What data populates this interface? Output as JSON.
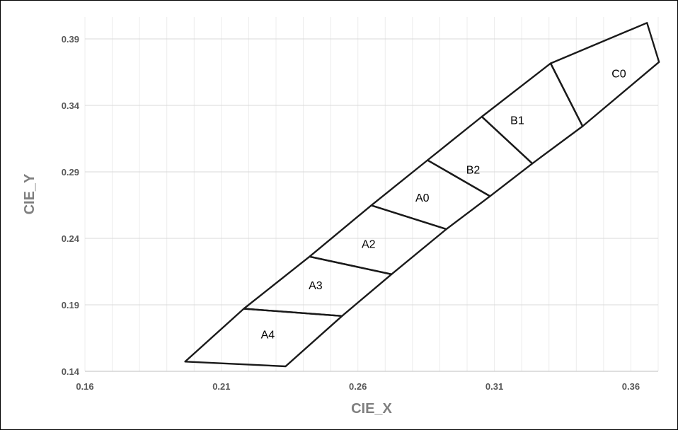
{
  "chart_data": {
    "type": "scatter",
    "xlabel": "CIE_X",
    "ylabel": "CIE_Y",
    "xlim": [
      0.16,
      0.37
    ],
    "ylim": [
      0.14,
      0.4
    ],
    "x_ticks": [
      0.16,
      0.21,
      0.26,
      0.31,
      0.36
    ],
    "y_ticks": [
      0.14,
      0.19,
      0.24,
      0.29,
      0.34,
      0.39
    ],
    "x_tick_labels": [
      "0.16",
      "0.21",
      "0.26",
      "0.31",
      "0.36"
    ],
    "y_tick_labels": [
      "0.14",
      "0.19",
      "0.24",
      "0.29",
      "0.34",
      "0.39"
    ],
    "minor_x_step": 0.01,
    "major_y_step": 0.05,
    "grid": true,
    "legend": "none",
    "line_color": "#1a1a1a",
    "regions": [
      {
        "name": "A4",
        "label_at": [
          0.227,
          0.168
        ],
        "vertices": [
          [
            0.1967,
            0.1473
          ],
          [
            0.2182,
            0.1871
          ],
          [
            0.2542,
            0.1816
          ],
          [
            0.2335,
            0.1437
          ]
        ]
      },
      {
        "name": "A3",
        "label_at": [
          0.2445,
          0.205
        ],
        "vertices": [
          [
            0.2182,
            0.1871
          ],
          [
            0.2423,
            0.2263
          ],
          [
            0.2723,
            0.213
          ],
          [
            0.2542,
            0.1816
          ]
        ]
      },
      {
        "name": "A2",
        "label_at": [
          0.2639,
          0.2359
        ],
        "vertices": [
          [
            0.2423,
            0.2263
          ],
          [
            0.2649,
            0.2648
          ],
          [
            0.2924,
            0.2469
          ],
          [
            0.2723,
            0.213
          ]
        ]
      },
      {
        "name": "A0",
        "label_at": [
          0.2836,
          0.2708
        ],
        "vertices": [
          [
            0.2649,
            0.2648
          ],
          [
            0.2855,
            0.2988
          ],
          [
            0.3084,
            0.2717
          ],
          [
            0.2924,
            0.2469
          ]
        ]
      },
      {
        "name": "B2",
        "label_at": [
          0.3022,
          0.2918
        ],
        "vertices": [
          [
            0.2855,
            0.2988
          ],
          [
            0.3054,
            0.3315
          ],
          [
            0.3239,
            0.2963
          ],
          [
            0.3084,
            0.2717
          ]
        ]
      },
      {
        "name": "B1",
        "label_at": [
          0.3184,
          0.3291
        ],
        "vertices": [
          [
            0.3054,
            0.3315
          ],
          [
            0.3306,
            0.3716
          ],
          [
            0.3423,
            0.3243
          ],
          [
            0.3239,
            0.2963
          ]
        ]
      },
      {
        "name": "C0",
        "label_at": [
          0.3556,
          0.3643
        ],
        "vertices": [
          [
            0.3306,
            0.3716
          ],
          [
            0.3659,
            0.4021
          ],
          [
            0.3703,
            0.3726
          ],
          [
            0.3423,
            0.3243
          ]
        ]
      }
    ]
  }
}
